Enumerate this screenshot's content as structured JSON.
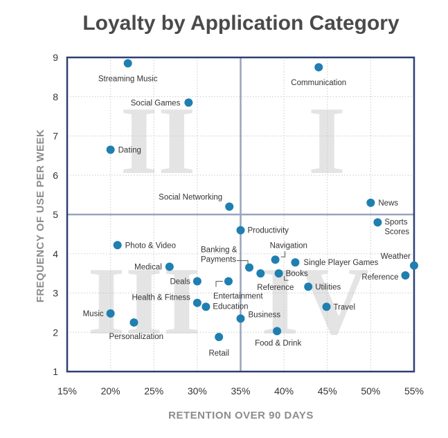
{
  "chart_data": {
    "type": "scatter",
    "title": "Loyalty by Application Category",
    "xlabel": "RETENTION OVER 90 DAYS",
    "ylabel": "FREQUENCY OF USE PER WEEK",
    "xlim": [
      15,
      55
    ],
    "ylim": [
      1,
      9
    ],
    "x_ticks": [
      "15%",
      "20%",
      "25%",
      "30%",
      "35%",
      "40%",
      "45%",
      "50%",
      "55%"
    ],
    "y_ticks": [
      "1",
      "2",
      "3",
      "4",
      "5",
      "6",
      "7",
      "8",
      "9"
    ],
    "x_tick_values": [
      15,
      20,
      25,
      30,
      35,
      40,
      45,
      50,
      55
    ],
    "y_tick_values": [
      1,
      2,
      3,
      4,
      5,
      6,
      7,
      8,
      9
    ],
    "divider_x": 35,
    "divider_y": 5,
    "grid": true,
    "quadrant_labels": [
      "II",
      "I",
      "III",
      "IV"
    ],
    "marker_color": "#1f7fb0",
    "points": [
      {
        "label": "Streaming Music",
        "x": 22.0,
        "y": 8.85
      },
      {
        "label": "Communication",
        "x": 44.0,
        "y": 8.75
      },
      {
        "label": "Social Games",
        "x": 29.0,
        "y": 7.85
      },
      {
        "label": "Dating",
        "x": 20.0,
        "y": 6.65
      },
      {
        "label": "Social Networking",
        "x": 33.7,
        "y": 5.2
      },
      {
        "label": "News",
        "x": 50.0,
        "y": 5.3
      },
      {
        "label": "Productivity",
        "x": 35.0,
        "y": 4.6
      },
      {
        "label": "Sports Scores",
        "x": 50.8,
        "y": 4.8
      },
      {
        "label": "Photo & Video",
        "x": 20.8,
        "y": 4.22
      },
      {
        "label": "Navigation",
        "x": 39.0,
        "y": 3.85
      },
      {
        "label": "Single Player Games",
        "x": 41.3,
        "y": 3.78
      },
      {
        "label": "Weather",
        "x": 55.0,
        "y": 3.7
      },
      {
        "label": "Medical",
        "x": 26.8,
        "y": 3.67
      },
      {
        "label": "Banking & Payments",
        "x": 36.0,
        "y": 3.65
      },
      {
        "label": "Reference",
        "x": 37.3,
        "y": 3.5
      },
      {
        "label": "Books",
        "x": 39.4,
        "y": 3.5
      },
      {
        "label": "Reference",
        "x": 54.0,
        "y": 3.45
      },
      {
        "label": "Deals",
        "x": 30.0,
        "y": 3.3
      },
      {
        "label": "Entertainment",
        "x": 33.6,
        "y": 3.3
      },
      {
        "label": "Utilities",
        "x": 42.8,
        "y": 3.16
      },
      {
        "label": "Health & Fitness",
        "x": 30.0,
        "y": 2.75
      },
      {
        "label": "Education",
        "x": 31.0,
        "y": 2.65
      },
      {
        "label": "Travel",
        "x": 44.9,
        "y": 2.65
      },
      {
        "label": "Music",
        "x": 20.0,
        "y": 2.48
      },
      {
        "label": "Business",
        "x": 35.0,
        "y": 2.35
      },
      {
        "label": "Personalization",
        "x": 22.7,
        "y": 2.25
      },
      {
        "label": "Food & Drink",
        "x": 39.2,
        "y": 2.03
      },
      {
        "label": "Retail",
        "x": 32.5,
        "y": 1.88
      }
    ]
  }
}
